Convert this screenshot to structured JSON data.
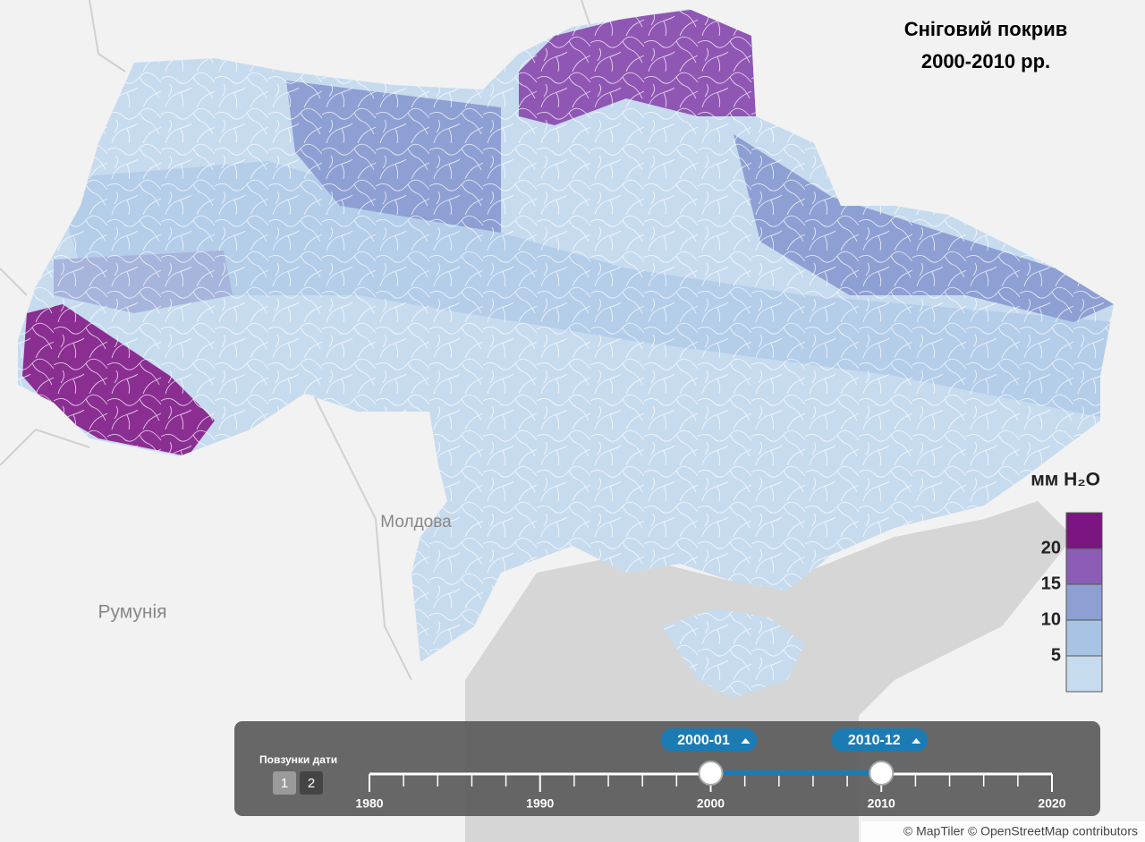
{
  "title": [
    "Сніговий покрив",
    "2000-2010 рр."
  ],
  "legend": {
    "unit": "мм H₂O",
    "lim": [
      0,
      25
    ],
    "ticks": [
      5,
      10,
      15,
      20
    ],
    "colors": [
      "#c7dbef",
      "#a7c4e4",
      "#8e9fd3",
      "#8b5db6",
      "#7b1581"
    ]
  },
  "map_labels": [
    "Молдова",
    "Румунія"
  ],
  "slider": {
    "label": "Повзунки дати",
    "pages": [
      "1",
      "2"
    ],
    "xlim": [
      1980,
      2020
    ],
    "xticks": [
      1980,
      1990,
      2000,
      2010,
      2020
    ],
    "handles": [
      "2000-01",
      "2010-12"
    ]
  },
  "attribution": "© MapTiler © OpenStreetMap contributors"
}
